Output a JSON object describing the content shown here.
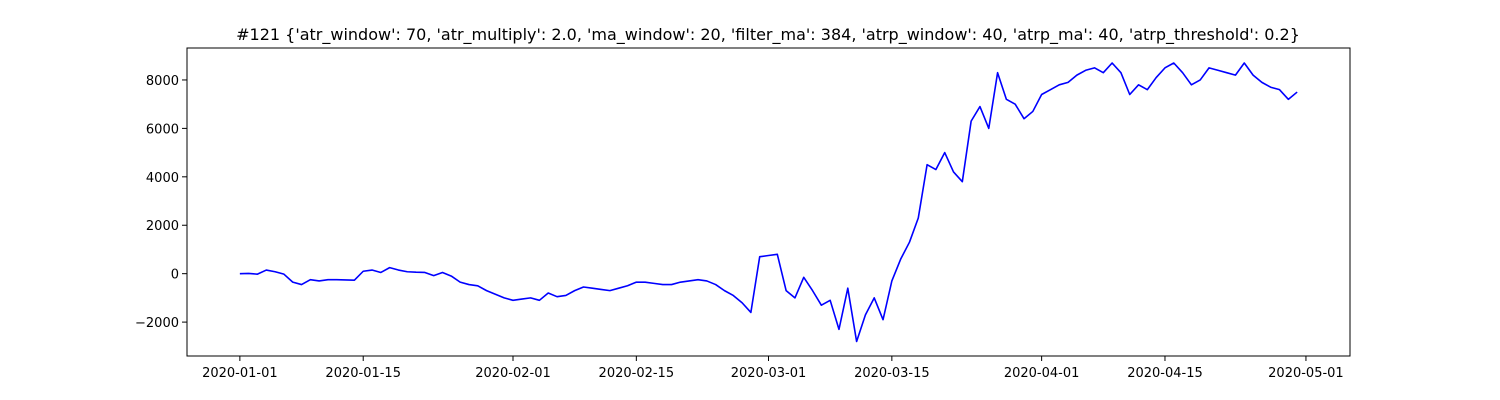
{
  "chart_data": {
    "type": "line",
    "title": "#121 {'atr_window': 70, 'atr_multiply': 2.0, 'ma_window': 20, 'filter_ma': 384, 'atrp_window': 40, 'atrp_ma': 40, 'atrp_threshold': 0.2}",
    "x": [
      "2020-01-01",
      "2020-01-02",
      "2020-01-03",
      "2020-01-04",
      "2020-01-05",
      "2020-01-06",
      "2020-01-07",
      "2020-01-08",
      "2020-01-09",
      "2020-01-10",
      "2020-01-11",
      "2020-01-12",
      "2020-01-13",
      "2020-01-14",
      "2020-01-15",
      "2020-01-16",
      "2020-01-17",
      "2020-01-18",
      "2020-01-19",
      "2020-01-20",
      "2020-01-21",
      "2020-01-22",
      "2020-01-23",
      "2020-01-24",
      "2020-01-25",
      "2020-01-26",
      "2020-01-27",
      "2020-01-28",
      "2020-01-29",
      "2020-01-30",
      "2020-01-31",
      "2020-02-01",
      "2020-02-02",
      "2020-02-03",
      "2020-02-04",
      "2020-02-05",
      "2020-02-06",
      "2020-02-07",
      "2020-02-08",
      "2020-02-09",
      "2020-02-10",
      "2020-02-11",
      "2020-02-12",
      "2020-02-13",
      "2020-02-14",
      "2020-02-15",
      "2020-02-16",
      "2020-02-17",
      "2020-02-18",
      "2020-02-19",
      "2020-02-20",
      "2020-02-21",
      "2020-02-22",
      "2020-02-23",
      "2020-02-24",
      "2020-02-25",
      "2020-02-26",
      "2020-02-27",
      "2020-02-28",
      "2020-02-29",
      "2020-03-01",
      "2020-03-02",
      "2020-03-03",
      "2020-03-04",
      "2020-03-05",
      "2020-03-06",
      "2020-03-07",
      "2020-03-08",
      "2020-03-09",
      "2020-03-10",
      "2020-03-11",
      "2020-03-12",
      "2020-03-13",
      "2020-03-14",
      "2020-03-15",
      "2020-03-16",
      "2020-03-17",
      "2020-03-18",
      "2020-03-19",
      "2020-03-20",
      "2020-03-21",
      "2020-03-22",
      "2020-03-23",
      "2020-03-24",
      "2020-03-25",
      "2020-03-26",
      "2020-03-27",
      "2020-03-28",
      "2020-03-29",
      "2020-03-30",
      "2020-03-31",
      "2020-04-01",
      "2020-04-02",
      "2020-04-03",
      "2020-04-04",
      "2020-04-05",
      "2020-04-06",
      "2020-04-07",
      "2020-04-08",
      "2020-04-09",
      "2020-04-10",
      "2020-04-11",
      "2020-04-12",
      "2020-04-13",
      "2020-04-14",
      "2020-04-15",
      "2020-04-16",
      "2020-04-17",
      "2020-04-18",
      "2020-04-19",
      "2020-04-20",
      "2020-04-21",
      "2020-04-22",
      "2020-04-23",
      "2020-04-24",
      "2020-04-25",
      "2020-04-26",
      "2020-04-27",
      "2020-04-28",
      "2020-04-29",
      "2020-04-30"
    ],
    "series": [
      {
        "color": "#0000ff",
        "values": [
          0,
          10,
          -20,
          150,
          80,
          -20,
          -350,
          -450,
          -250,
          -300,
          -250,
          -250,
          -260,
          -270,
          100,
          150,
          50,
          250,
          150,
          80,
          60,
          50,
          -80,
          50,
          -100,
          -350,
          -450,
          -500,
          -700,
          -850,
          -1000,
          -1100,
          -1050,
          -1000,
          -1100,
          -800,
          -950,
          -900,
          -700,
          -550,
          -600,
          -650,
          -700,
          -600,
          -500,
          -350,
          -350,
          -400,
          -450,
          -450,
          -350,
          -300,
          -250,
          -300,
          -450,
          -700,
          -900,
          -1200,
          -1600,
          700,
          750,
          800,
          -700,
          -1000,
          -150,
          -700,
          -1300,
          -1100,
          -2300,
          -600,
          -2800,
          -1700,
          -1000,
          -1900,
          -300,
          600,
          1300,
          2300,
          4500,
          4300,
          5000,
          4200,
          3800,
          6300,
          6900,
          6000,
          8300,
          7200,
          7000,
          6400,
          6700,
          7400,
          7600,
          7800,
          7900,
          8200,
          8400,
          8500,
          8300,
          8700,
          8300,
          7400,
          7800,
          7600,
          8100,
          8500,
          8700,
          8300,
          7800,
          8000,
          8500,
          8400,
          8300,
          8200,
          8700,
          8200,
          7900,
          7700,
          7600,
          7200,
          7500
        ]
      }
    ],
    "xlim": [
      "2019-12-26",
      "2020-05-06"
    ],
    "xticks": [
      "2020-01-01",
      "2020-01-15",
      "2020-02-01",
      "2020-02-15",
      "2020-03-01",
      "2020-03-15",
      "2020-04-01",
      "2020-04-15",
      "2020-05-01"
    ],
    "ylim": [
      -3400,
      9320
    ],
    "yticks": [
      {
        "value": -2000,
        "label": "−2000"
      },
      0,
      2000,
      4000,
      6000,
      8000
    ]
  }
}
